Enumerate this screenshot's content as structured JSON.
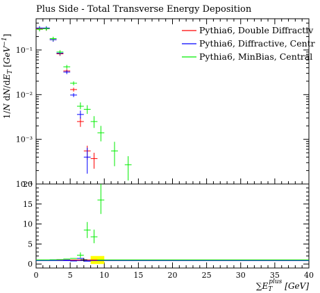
{
  "chart_data": {
    "title": "Plus Side - Total Transverse Energy Deposition",
    "type": "scatter",
    "x_axis": {
      "label": "∑E_T^plus [GeV]",
      "label_parts": {
        "sum": "∑",
        "base": "E",
        "sub": "T",
        "sup": "plus",
        "unit": "[GeV]"
      },
      "range": [
        0,
        40
      ],
      "ticks": [
        "0",
        "5",
        "10",
        "15",
        "20",
        "25",
        "30",
        "35",
        "40"
      ]
    },
    "upper_panel": {
      "y_axis": {
        "label": "1/N dN/dE_T [GeV^-1]",
        "scale": "log",
        "range": [
          0.0001,
          0.5
        ],
        "tick_labels": [
          "10⁻⁴",
          "10⁻³",
          "10⁻²",
          "10⁻¹"
        ]
      },
      "series": [
        {
          "name": "Pythia6, Double Diffractiv",
          "color": "#ff0000",
          "points": [
            {
              "x": 0.5,
              "y": 0.3,
              "xerr": 0.5
            },
            {
              "x": 1.5,
              "y": 0.3,
              "xerr": 0.5
            },
            {
              "x": 2.5,
              "y": 0.17,
              "xerr": 0.5
            },
            {
              "x": 3.5,
              "y": 0.082,
              "xerr": 0.5
            },
            {
              "x": 4.5,
              "y": 0.034,
              "xerr": 0.5
            },
            {
              "x": 5.5,
              "y": 0.013,
              "xerr": 0.5
            },
            {
              "x": 6.5,
              "y": 0.0025,
              "xerr": 0.5,
              "elo": 0.0019,
              "ehi": 0.0032
            },
            {
              "x": 7.5,
              "y": 0.00055,
              "xerr": 0.5,
              "elo": 0.00035,
              "ehi": 0.00072
            },
            {
              "x": 8.5,
              "y": 0.00037,
              "xerr": 0.5,
              "elo": 0.00022,
              "ehi": 0.0005
            }
          ]
        },
        {
          "name": "Pythia6, Diffractive, Centr",
          "color": "#0000ff",
          "points": [
            {
              "x": 0.5,
              "y": 0.31,
              "xerr": 0.5
            },
            {
              "x": 1.5,
              "y": 0.31,
              "xerr": 0.5
            },
            {
              "x": 2.5,
              "y": 0.17,
              "xerr": 0.5
            },
            {
              "x": 3.5,
              "y": 0.085,
              "xerr": 0.5
            },
            {
              "x": 4.5,
              "y": 0.032,
              "xerr": 0.5
            },
            {
              "x": 5.5,
              "y": 0.0098,
              "xerr": 0.5
            },
            {
              "x": 6.5,
              "y": 0.0036,
              "xerr": 0.5,
              "elo": 0.0029,
              "ehi": 0.0044
            },
            {
              "x": 7.5,
              "y": 0.0004,
              "xerr": 0.5,
              "elo": 0.00017,
              "ehi": 0.00065
            }
          ]
        },
        {
          "name": "Pythia6, MinBias, Central",
          "color": "#00ee00",
          "points": [
            {
              "x": 0.5,
              "y": 0.29,
              "xerr": 0.5
            },
            {
              "x": 1.5,
              "y": 0.3,
              "xerr": 0.5
            },
            {
              "x": 2.5,
              "y": 0.18,
              "xerr": 0.5
            },
            {
              "x": 3.5,
              "y": 0.09,
              "xerr": 0.5
            },
            {
              "x": 4.5,
              "y": 0.042,
              "xerr": 0.5
            },
            {
              "x": 5.5,
              "y": 0.018,
              "xerr": 0.5
            },
            {
              "x": 6.5,
              "y": 0.0055,
              "xerr": 0.5,
              "elo": 0.0047,
              "ehi": 0.0067
            },
            {
              "x": 7.5,
              "y": 0.0047,
              "xerr": 0.5,
              "elo": 0.0037,
              "ehi": 0.0058
            },
            {
              "x": 8.5,
              "y": 0.0025,
              "xerr": 0.5,
              "elo": 0.0018,
              "ehi": 0.0033
            },
            {
              "x": 9.5,
              "y": 0.0014,
              "xerr": 0.5,
              "elo": 0.0009,
              "ehi": 0.002
            },
            {
              "x": 11.5,
              "y": 0.00055,
              "xerr": 0.5,
              "elo": 0.00025,
              "ehi": 0.00088
            },
            {
              "x": 13.5,
              "y": 0.00027,
              "xerr": 0.5,
              "elo": 0.00012,
              "ehi": 0.00042
            }
          ]
        }
      ]
    },
    "lower_panel": {
      "y_axis": {
        "scale": "linear",
        "range": [
          -1,
          20
        ],
        "ticks": [
          "0",
          "5",
          "10",
          "15",
          "20"
        ]
      },
      "reference_line": 1,
      "series": [
        {
          "name": "Pythia6, Double Diffractiv",
          "color": "#ff0000",
          "points": [
            {
              "x": 0.5,
              "y": 1
            },
            {
              "x": 1.5,
              "y": 1
            },
            {
              "x": 2.5,
              "y": 1
            },
            {
              "x": 3.5,
              "y": 1
            },
            {
              "x": 4.5,
              "y": 1
            },
            {
              "x": 5.5,
              "y": 1
            },
            {
              "x": 6.5,
              "y": 1
            },
            {
              "x": 7.5,
              "y": 1
            },
            {
              "x": 8.5,
              "y": 1
            }
          ]
        },
        {
          "name": "Pythia6, Diffractive, Centr",
          "color": "#0000ff",
          "points": [
            {
              "x": 0.5,
              "y": 1.0
            },
            {
              "x": 1.5,
              "y": 1.0
            },
            {
              "x": 2.5,
              "y": 1.0
            },
            {
              "x": 3.5,
              "y": 1.05
            },
            {
              "x": 4.5,
              "y": 0.95
            },
            {
              "x": 5.5,
              "y": 0.75
            },
            {
              "x": 6.5,
              "y": 1.4
            },
            {
              "x": 7.5,
              "y": 0.7
            }
          ]
        },
        {
          "name": "Pythia6, MinBias, Central",
          "color": "#00ee00",
          "points": [
            {
              "x": 0.5,
              "y": 1.0
            },
            {
              "x": 1.5,
              "y": 1.0
            },
            {
              "x": 2.5,
              "y": 1.05
            },
            {
              "x": 3.5,
              "y": 1.1
            },
            {
              "x": 4.5,
              "y": 1.25
            },
            {
              "x": 5.5,
              "y": 1.4
            },
            {
              "x": 6.5,
              "y": 2.2,
              "elo": 1.5,
              "ehi": 2.9
            },
            {
              "x": 7.5,
              "y": 8.5,
              "elo": 6.5,
              "ehi": 10.5
            },
            {
              "x": 8.5,
              "y": 6.8,
              "elo": 5.2,
              "ehi": 8.6
            },
            {
              "x": 9.5,
              "y": 16.0,
              "elo": 12.5,
              "ehi": 20
            }
          ]
        }
      ],
      "uncertainty_band": {
        "color": "#ffff00",
        "x_range": [
          8,
          10
        ],
        "y_range": [
          0,
          2
        ]
      }
    },
    "legend": {
      "position": "top-right"
    },
    "grid": false
  }
}
